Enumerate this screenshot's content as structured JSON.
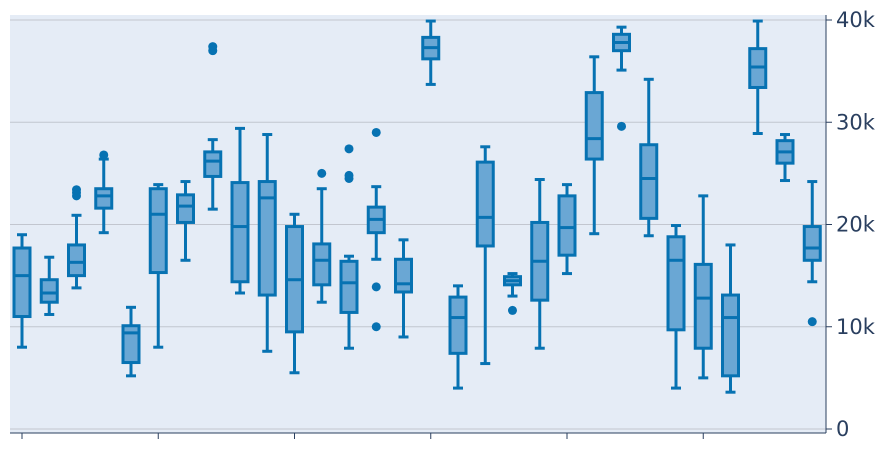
{
  "chart_data": {
    "type": "box",
    "title": "",
    "xlabel": "",
    "ylabel": "",
    "ylim": [
      0,
      40000
    ],
    "y_axis_side": "right",
    "y_ticks": [
      0,
      10000,
      20000,
      30000,
      40000
    ],
    "y_tick_labels": [
      "0",
      "10k",
      "20k",
      "30k",
      "40k"
    ],
    "x_ticks": [
      0,
      5,
      10,
      15,
      20,
      25
    ],
    "x_tick_labels": [],
    "grid": true,
    "legend": "none",
    "colors": {
      "box_line": "#0772b2",
      "box_fill": "#6aa7d4",
      "plot_bg": "#e5ecf6"
    },
    "boxes": [
      {
        "min": 8000,
        "q1": 11000,
        "median": 15000,
        "q3": 17700,
        "max": 19000,
        "outliers": []
      },
      {
        "min": 11200,
        "q1": 12400,
        "median": 13300,
        "q3": 14600,
        "max": 16800,
        "outliers": []
      },
      {
        "min": 13800,
        "q1": 15000,
        "median": 16300,
        "q3": 18000,
        "max": 20900,
        "outliers": [
          22800,
          23100,
          23400
        ]
      },
      {
        "min": 19200,
        "q1": 21600,
        "median": 22800,
        "q3": 23500,
        "max": 26400,
        "outliers": [
          26800
        ]
      },
      {
        "min": 5200,
        "q1": 6500,
        "median": 9400,
        "q3": 10100,
        "max": 11900,
        "outliers": []
      },
      {
        "min": 8000,
        "q1": 15300,
        "median": 21000,
        "q3": 23500,
        "max": 23900,
        "outliers": []
      },
      {
        "min": 16500,
        "q1": 20200,
        "median": 21800,
        "q3": 22900,
        "max": 24200,
        "outliers": []
      },
      {
        "min": 21500,
        "q1": 24700,
        "median": 26200,
        "q3": 27100,
        "max": 28300,
        "outliers": [
          37000,
          37400
        ]
      },
      {
        "min": 13300,
        "q1": 14400,
        "median": 19800,
        "q3": 24100,
        "max": 29400,
        "outliers": []
      },
      {
        "min": 7600,
        "q1": 13100,
        "median": 22600,
        "q3": 24200,
        "max": 28800,
        "outliers": []
      },
      {
        "min": 5500,
        "q1": 9500,
        "median": 14600,
        "q3": 19800,
        "max": 21000,
        "outliers": []
      },
      {
        "min": 12400,
        "q1": 14100,
        "median": 16500,
        "q3": 18100,
        "max": 23500,
        "outliers": [
          25000
        ]
      },
      {
        "min": 7900,
        "q1": 11400,
        "median": 14300,
        "q3": 16400,
        "max": 16900,
        "outliers": [
          24500,
          24800,
          27400
        ]
      },
      {
        "min": 16600,
        "q1": 19200,
        "median": 20500,
        "q3": 21700,
        "max": 23700,
        "outliers": [
          10000,
          13900,
          29000
        ]
      },
      {
        "min": 9000,
        "q1": 13400,
        "median": 14200,
        "q3": 16600,
        "max": 18500,
        "outliers": []
      },
      {
        "min": 33700,
        "q1": 36200,
        "median": 37300,
        "q3": 38300,
        "max": 39900,
        "outliers": []
      },
      {
        "min": 4000,
        "q1": 7400,
        "median": 10900,
        "q3": 12900,
        "max": 14000,
        "outliers": []
      },
      {
        "min": 6400,
        "q1": 17900,
        "median": 20700,
        "q3": 26100,
        "max": 27600,
        "outliers": []
      },
      {
        "min": 13000,
        "q1": 14100,
        "median": 14500,
        "q3": 14900,
        "max": 15200,
        "outliers": [
          11600
        ]
      },
      {
        "min": 7900,
        "q1": 12600,
        "median": 16400,
        "q3": 20200,
        "max": 24400,
        "outliers": []
      },
      {
        "min": 15200,
        "q1": 17000,
        "median": 19700,
        "q3": 22800,
        "max": 23900,
        "outliers": []
      },
      {
        "min": 19100,
        "q1": 26400,
        "median": 28400,
        "q3": 32900,
        "max": 36400,
        "outliers": []
      },
      {
        "min": 35100,
        "q1": 37000,
        "median": 37800,
        "q3": 38600,
        "max": 39300,
        "outliers": [
          29600
        ]
      },
      {
        "min": 18900,
        "q1": 20600,
        "median": 24500,
        "q3": 27800,
        "max": 34200,
        "outliers": []
      },
      {
        "min": 4000,
        "q1": 9700,
        "median": 16500,
        "q3": 18800,
        "max": 19900,
        "outliers": []
      },
      {
        "min": 5000,
        "q1": 7900,
        "median": 12800,
        "q3": 16100,
        "max": 22800,
        "outliers": []
      },
      {
        "min": 3600,
        "q1": 5200,
        "median": 10900,
        "q3": 13100,
        "max": 18000,
        "outliers": []
      },
      {
        "min": 28900,
        "q1": 33400,
        "median": 35400,
        "q3": 37200,
        "max": 39900,
        "outliers": []
      },
      {
        "min": 24300,
        "q1": 26000,
        "median": 27100,
        "q3": 28200,
        "max": 28800,
        "outliers": []
      },
      {
        "min": 14400,
        "q1": 16500,
        "median": 17700,
        "q3": 19800,
        "max": 24200,
        "outliers": [
          10500
        ]
      }
    ]
  }
}
